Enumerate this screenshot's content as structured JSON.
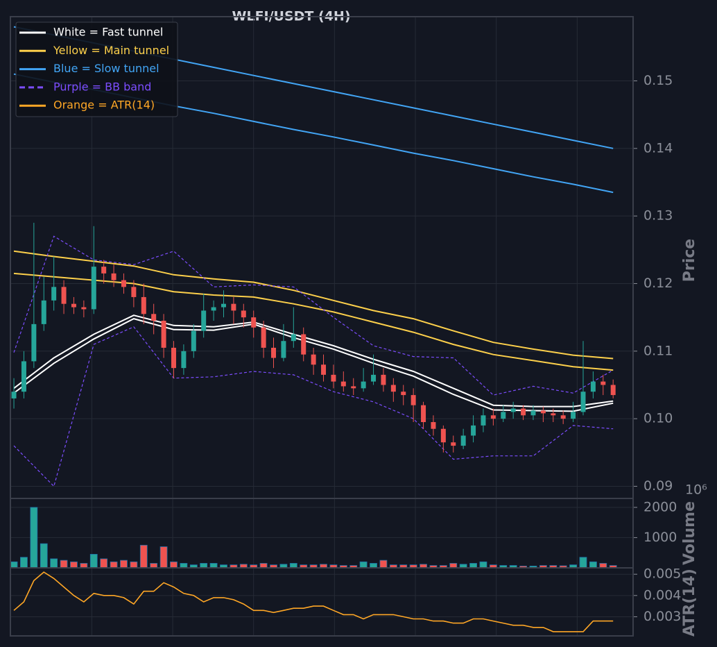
{
  "chart_data": [
    {
      "type": "candlestick",
      "title": "WLFI/USDT (4H)",
      "ylabel": "Price",
      "legend": "upper left",
      "grid": true,
      "up_color": "#26a69a",
      "down_color": "#ef5350",
      "xlim": [
        -0.35,
        62.0
      ],
      "xticks": [
        7.8,
        15.9,
        24,
        32.1,
        40.2,
        48.3,
        56.4
      ],
      "ylim": [
        0.0882,
        0.1595
      ],
      "yticks": [
        0.09,
        {
          "value": 0.1,
          "label": "0.10"
        },
        0.11,
        0.12,
        0.13,
        0.14,
        0.15
      ],
      "x": [
        0,
        1,
        2,
        3,
        4,
        5,
        6,
        7,
        8,
        9,
        10,
        11,
        12,
        13,
        14,
        15,
        16,
        17,
        18,
        19,
        20,
        21,
        22,
        23,
        24,
        25,
        26,
        27,
        28,
        29,
        30,
        31,
        32,
        33,
        34,
        35,
        36,
        37,
        38,
        39,
        40,
        41,
        42,
        43,
        44,
        45,
        46,
        47,
        48,
        49,
        50,
        51,
        52,
        53,
        54,
        55,
        56,
        57,
        58,
        59,
        60
      ],
      "open": [
        0.103,
        0.104,
        0.1085,
        0.114,
        0.1175,
        0.1195,
        0.117,
        0.1165,
        0.1162,
        0.1225,
        0.1215,
        0.1205,
        0.1195,
        0.118,
        0.1155,
        0.1145,
        0.1105,
        0.1075,
        0.11,
        0.113,
        0.116,
        0.1165,
        0.117,
        0.116,
        0.115,
        0.1135,
        0.1105,
        0.109,
        0.1115,
        0.1125,
        0.1095,
        0.108,
        0.1065,
        0.1055,
        0.1048,
        0.1045,
        0.1055,
        0.1065,
        0.105,
        0.104,
        0.1035,
        0.102,
        0.0995,
        0.0985,
        0.0965,
        0.096,
        0.0975,
        0.099,
        0.1005,
        0.1,
        0.101,
        0.1015,
        0.1005,
        0.1012,
        0.1008,
        0.1005,
        0.1,
        0.101,
        0.104,
        0.1055,
        0.105
      ],
      "high": [
        0.106,
        0.11,
        0.129,
        0.121,
        0.124,
        0.1205,
        0.118,
        0.1175,
        0.1285,
        0.1235,
        0.1228,
        0.1215,
        0.1205,
        0.12,
        0.117,
        0.1155,
        0.1115,
        0.111,
        0.114,
        0.1185,
        0.1175,
        0.119,
        0.118,
        0.117,
        0.116,
        0.1145,
        0.112,
        0.114,
        0.1165,
        0.1135,
        0.1105,
        0.1095,
        0.108,
        0.107,
        0.106,
        0.1075,
        0.1095,
        0.1075,
        0.106,
        0.105,
        0.1045,
        0.1025,
        0.1005,
        0.099,
        0.0975,
        0.0985,
        0.1005,
        0.1015,
        0.1015,
        0.102,
        0.1025,
        0.102,
        0.102,
        0.1018,
        0.1015,
        0.1012,
        0.1025,
        0.1115,
        0.107,
        0.1065,
        0.1058
      ],
      "low": [
        0.1015,
        0.103,
        0.1075,
        0.113,
        0.116,
        0.1155,
        0.1155,
        0.115,
        0.1155,
        0.12,
        0.1195,
        0.1185,
        0.1165,
        0.114,
        0.1125,
        0.109,
        0.106,
        0.1065,
        0.109,
        0.112,
        0.1145,
        0.115,
        0.114,
        0.1135,
        0.112,
        0.109,
        0.1075,
        0.1085,
        0.1105,
        0.1085,
        0.1065,
        0.1055,
        0.1045,
        0.104,
        0.1035,
        0.104,
        0.105,
        0.104,
        0.1025,
        0.102,
        0.0995,
        0.0985,
        0.0975,
        0.095,
        0.095,
        0.0955,
        0.0965,
        0.098,
        0.099,
        0.0995,
        0.1,
        0.0998,
        0.0998,
        0.0995,
        0.0995,
        0.0992,
        0.0995,
        0.1005,
        0.103,
        0.1035,
        0.103
      ],
      "close": [
        0.104,
        0.1085,
        0.114,
        0.1175,
        0.1195,
        0.117,
        0.1165,
        0.1162,
        0.1225,
        0.1215,
        0.1205,
        0.1195,
        0.118,
        0.1155,
        0.1145,
        0.1105,
        0.1075,
        0.11,
        0.113,
        0.116,
        0.1165,
        0.117,
        0.116,
        0.115,
        0.1135,
        0.1105,
        0.109,
        0.1115,
        0.1125,
        0.1095,
        0.108,
        0.1065,
        0.1055,
        0.1048,
        0.1045,
        0.1055,
        0.1065,
        0.105,
        0.104,
        0.1035,
        0.102,
        0.0995,
        0.0985,
        0.0965,
        0.096,
        0.0975,
        0.099,
        0.1005,
        0.1,
        0.101,
        0.1015,
        0.1005,
        0.1012,
        0.1008,
        0.1005,
        0.1,
        0.101,
        0.104,
        0.1055,
        0.105,
        0.1035
      ],
      "series": [
        {
          "name": "White = Fast tunnel",
          "color": "#ffffff",
          "dashed": false,
          "x": [
            0,
            4,
            8,
            12,
            16,
            20,
            24,
            28,
            32,
            36,
            40,
            44,
            48,
            52,
            56,
            60
          ],
          "upper": [
            0.1045,
            0.109,
            0.1125,
            0.1153,
            0.1138,
            0.1136,
            0.1143,
            0.1125,
            0.1108,
            0.1088,
            0.107,
            0.1045,
            0.102,
            0.1018,
            0.1018,
            0.1026
          ],
          "lower": [
            0.1038,
            0.1082,
            0.1118,
            0.1148,
            0.1132,
            0.1131,
            0.114,
            0.112,
            0.1103,
            0.1082,
            0.1063,
            0.1036,
            0.1013,
            0.1012,
            0.1011,
            0.1023
          ]
        },
        {
          "name": "Yellow = Main tunnel",
          "color": "#fdd04b",
          "dashed": false,
          "x": [
            0,
            4,
            8,
            12,
            16,
            20,
            24,
            28,
            32,
            36,
            40,
            44,
            48,
            52,
            56,
            60
          ],
          "upper": [
            0.1248,
            0.124,
            0.1233,
            0.1226,
            0.1213,
            0.1207,
            0.1202,
            0.119,
            0.1175,
            0.116,
            0.1148,
            0.113,
            0.1113,
            0.1103,
            0.1094,
            0.1089
          ],
          "lower": [
            0.1215,
            0.121,
            0.1205,
            0.12,
            0.1188,
            0.1183,
            0.118,
            0.117,
            0.1158,
            0.1143,
            0.1128,
            0.111,
            0.1095,
            0.1086,
            0.1077,
            0.1072
          ]
        },
        {
          "name": "Blue = Slow tunnel",
          "color": "#42a5f5",
          "dashed": false,
          "x": [
            0,
            4,
            8,
            12,
            16,
            20,
            24,
            28,
            32,
            36,
            40,
            44,
            48,
            52,
            56,
            60
          ],
          "upper": [
            0.158,
            0.1568,
            0.1556,
            0.1544,
            0.1532,
            0.152,
            0.1508,
            0.1496,
            0.1484,
            0.1472,
            0.146,
            0.1448,
            0.1436,
            0.1424,
            0.1412,
            0.14
          ],
          "lower": [
            0.151,
            0.1498,
            0.1487,
            0.1475,
            0.1463,
            0.1452,
            0.144,
            0.1428,
            0.1417,
            0.1405,
            0.1393,
            0.1382,
            0.137,
            0.1358,
            0.1347,
            0.1335
          ]
        },
        {
          "name": "Purple = BB band",
          "color": "#7c4dff",
          "dashed": true,
          "x": [
            0,
            4,
            8,
            12,
            16,
            20,
            24,
            28,
            32,
            36,
            40,
            44,
            48,
            52,
            56,
            60
          ],
          "upper": [
            0.1098,
            0.127,
            0.1235,
            0.1228,
            0.1248,
            0.1195,
            0.1198,
            0.1195,
            0.115,
            0.1108,
            0.1092,
            0.109,
            0.1035,
            0.1048,
            0.1038,
            0.1072
          ],
          "lower": [
            0.096,
            0.09,
            0.111,
            0.1136,
            0.106,
            0.1062,
            0.107,
            0.1065,
            0.104,
            0.1025,
            0.1,
            0.094,
            0.0945,
            0.0945,
            0.099,
            0.0985
          ]
        }
      ]
    },
    {
      "type": "bar",
      "ylabel": "Volume",
      "offset_label": "10⁶",
      "grid": true,
      "xlim": [
        -0.35,
        62.0
      ],
      "xticks": [
        7.8,
        15.9,
        24,
        32.1,
        40.2,
        48.3,
        56.4
      ],
      "ylim": [
        0,
        2295
      ],
      "yticks": [
        1000,
        2000
      ],
      "x": [
        0,
        1,
        2,
        3,
        4,
        5,
        6,
        7,
        8,
        9,
        10,
        11,
        12,
        13,
        14,
        15,
        16,
        17,
        18,
        19,
        20,
        21,
        22,
        23,
        24,
        25,
        26,
        27,
        28,
        29,
        30,
        31,
        32,
        33,
        34,
        35,
        36,
        37,
        38,
        39,
        40,
        41,
        42,
        43,
        44,
        45,
        46,
        47,
        48,
        49,
        50,
        51,
        52,
        53,
        54,
        55,
        56,
        57,
        58,
        59,
        60
      ],
      "values": [
        200,
        350,
        2000,
        800,
        300,
        250,
        200,
        150,
        450,
        300,
        200,
        250,
        200,
        750,
        150,
        700,
        200,
        150,
        100,
        150,
        150,
        100,
        100,
        120,
        100,
        150,
        100,
        120,
        150,
        100,
        100,
        120,
        100,
        80,
        80,
        200,
        150,
        250,
        100,
        100,
        100,
        120,
        80,
        80,
        150,
        120,
        150,
        200,
        100,
        80,
        80,
        60,
        60,
        80,
        80,
        70,
        100,
        350,
        200,
        150,
        80
      ]
    },
    {
      "type": "line",
      "ylabel": "ATR(14)",
      "grid": true,
      "xlim": [
        -0.35,
        62.0
      ],
      "xticks": [
        7.8,
        15.9,
        24,
        32.1,
        40.2,
        48.3,
        56.4
      ],
      "ylim": [
        0.0021,
        0.0053
      ],
      "yticks": [
        0.003,
        0.004,
        0.005
      ],
      "series": [
        {
          "name": "Orange = ATR(14)",
          "color": "#ffa726",
          "x": [
            0,
            1,
            2,
            3,
            4,
            5,
            6,
            7,
            8,
            9,
            10,
            11,
            12,
            13,
            14,
            15,
            16,
            17,
            18,
            19,
            20,
            21,
            22,
            23,
            24,
            25,
            26,
            27,
            28,
            29,
            30,
            31,
            32,
            33,
            34,
            35,
            36,
            37,
            38,
            39,
            40,
            41,
            42,
            43,
            44,
            45,
            46,
            47,
            48,
            49,
            50,
            51,
            52,
            53,
            54,
            55,
            56,
            57,
            58,
            59,
            60
          ],
          "values": [
            0.0033,
            0.0037,
            0.0047,
            0.0051,
            0.0048,
            0.0044,
            0.004,
            0.0037,
            0.0041,
            0.004,
            0.004,
            0.0039,
            0.0036,
            0.0042,
            0.0042,
            0.0046,
            0.0044,
            0.0041,
            0.004,
            0.0037,
            0.0039,
            0.0039,
            0.0038,
            0.0036,
            0.0033,
            0.0033,
            0.0032,
            0.0033,
            0.0034,
            0.0034,
            0.0035,
            0.0035,
            0.0033,
            0.0031,
            0.0031,
            0.0029,
            0.0031,
            0.0031,
            0.0031,
            0.003,
            0.0029,
            0.0029,
            0.0028,
            0.0028,
            0.0027,
            0.0027,
            0.0029,
            0.0029,
            0.0028,
            0.0027,
            0.0026,
            0.0026,
            0.0025,
            0.0025,
            0.0023,
            0.0023,
            0.0023,
            0.0023,
            0.0028,
            0.0028,
            0.0028
          ]
        }
      ]
    }
  ]
}
